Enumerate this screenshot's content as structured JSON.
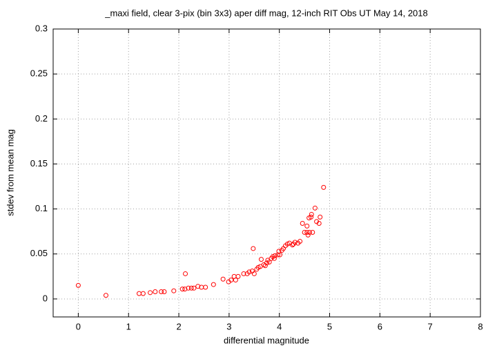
{
  "chart_data": {
    "type": "scatter",
    "title": "_maxi field, clear 3-pix (bin 3x3) aper diff mag,  12-inch RIT Obs UT May 14, 2018",
    "x_label": "differential magnitude",
    "y_label": "stdev from mean mag",
    "color": "#ff0000",
    "grid": true,
    "xlim": [
      -0.5,
      8
    ],
    "xticks": [
      0,
      1,
      2,
      3,
      4,
      5,
      6,
      7,
      8
    ],
    "ylim": [
      -0.02,
      0.3
    ],
    "yticks": [
      0,
      0.05,
      0.1,
      0.15,
      0.2,
      0.25,
      0.3
    ],
    "x": [
      0,
      0.55,
      1.21,
      1.29,
      1.43,
      1.53,
      1.65,
      1.71,
      1.9,
      2.07,
      2.12,
      2.13,
      2.19,
      2.25,
      2.3,
      2.38,
      2.45,
      2.53,
      2.69,
      2.88,
      2.99,
      3.04,
      3.1,
      3.13,
      3.18,
      3.29,
      3.36,
      3.4,
      3.46,
      3.5,
      3.48,
      3.55,
      3.58,
      3.62,
      3.64,
      3.69,
      3.72,
      3.75,
      3.77,
      3.8,
      3.84,
      3.87,
      3.9,
      3.91,
      3.97,
      3.99,
      4.01,
      4.05,
      4.08,
      4.12,
      4.16,
      4.2,
      4.26,
      4.28,
      4.31,
      4.37,
      4.41,
      4.46,
      4.5,
      4.55,
      4.57,
      4.55,
      4.6,
      4.59,
      4.63,
      4.64,
      4.66,
      4.71,
      4.74,
      4.79,
      4.81,
      4.88
    ],
    "values": [
      0.015,
      0.004,
      0.006,
      0.006,
      0.007,
      0.008,
      0.008,
      0.008,
      0.009,
      0.011,
      0.011,
      0.028,
      0.012,
      0.012,
      0.012,
      0.014,
      0.013,
      0.013,
      0.016,
      0.022,
      0.019,
      0.021,
      0.025,
      0.021,
      0.025,
      0.028,
      0.028,
      0.03,
      0.031,
      0.028,
      0.056,
      0.033,
      0.035,
      0.036,
      0.044,
      0.038,
      0.037,
      0.04,
      0.043,
      0.041,
      0.045,
      0.047,
      0.045,
      0.048,
      0.049,
      0.053,
      0.049,
      0.054,
      0.056,
      0.059,
      0.061,
      0.062,
      0.06,
      0.061,
      0.063,
      0.062,
      0.064,
      0.084,
      0.074,
      0.074,
      0.071,
      0.081,
      0.074,
      0.09,
      0.091,
      0.094,
      0.074,
      0.101,
      0.086,
      0.084,
      0.091,
      0.124
    ]
  }
}
